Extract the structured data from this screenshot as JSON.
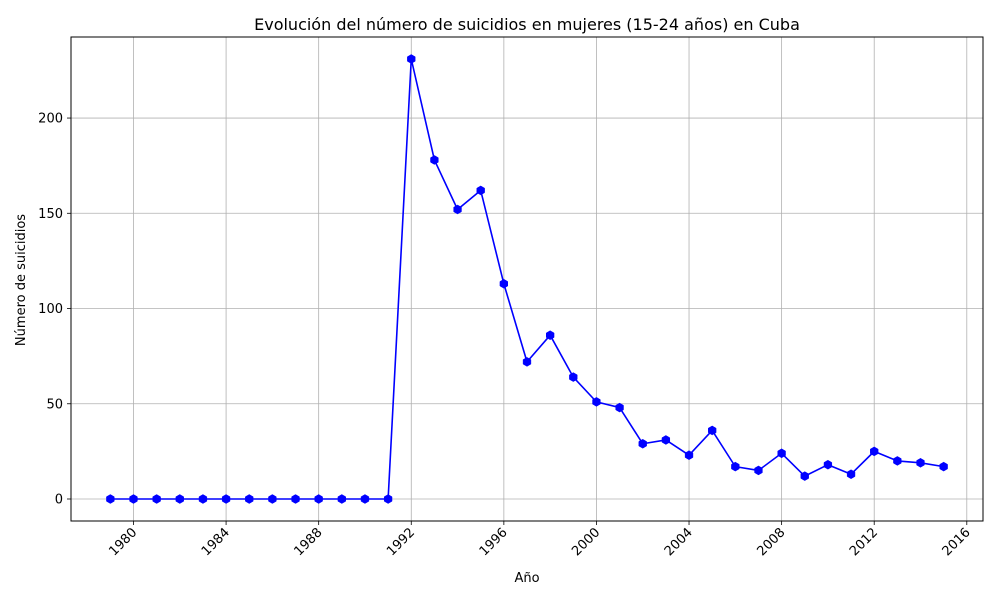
{
  "chart_data": {
    "type": "line",
    "title": "Evolución del número de suicidios en mujeres (15-24 años) en Cuba",
    "xlabel": "Año",
    "ylabel": "Número de suicidios",
    "xlim": [
      1977.3,
      2016.7
    ],
    "ylim": [
      -11.55,
      242.55
    ],
    "x_ticks": [
      1980,
      1984,
      1988,
      1992,
      1996,
      2000,
      2004,
      2008,
      2012,
      2016
    ],
    "y_ticks": [
      0,
      50,
      100,
      150,
      200
    ],
    "grid": true,
    "series": [
      {
        "color": "#0000ff",
        "marker": "hexagon",
        "x": [
          1979,
          1980,
          1981,
          1982,
          1983,
          1984,
          1985,
          1986,
          1987,
          1988,
          1989,
          1990,
          1991,
          1992,
          1993,
          1994,
          1995,
          1996,
          1997,
          1998,
          1999,
          2000,
          2001,
          2002,
          2003,
          2004,
          2005,
          2006,
          2007,
          2008,
          2009,
          2010,
          2011,
          2012,
          2013,
          2014,
          2015
        ],
        "y": [
          0,
          0,
          0,
          0,
          0,
          0,
          0,
          0,
          0,
          0,
          0,
          0,
          0,
          231,
          178,
          152,
          162,
          113,
          72,
          86,
          64,
          51,
          48,
          29,
          31,
          23,
          36,
          17,
          15,
          24,
          12,
          18,
          13,
          25,
          20,
          19,
          17
        ]
      }
    ]
  }
}
